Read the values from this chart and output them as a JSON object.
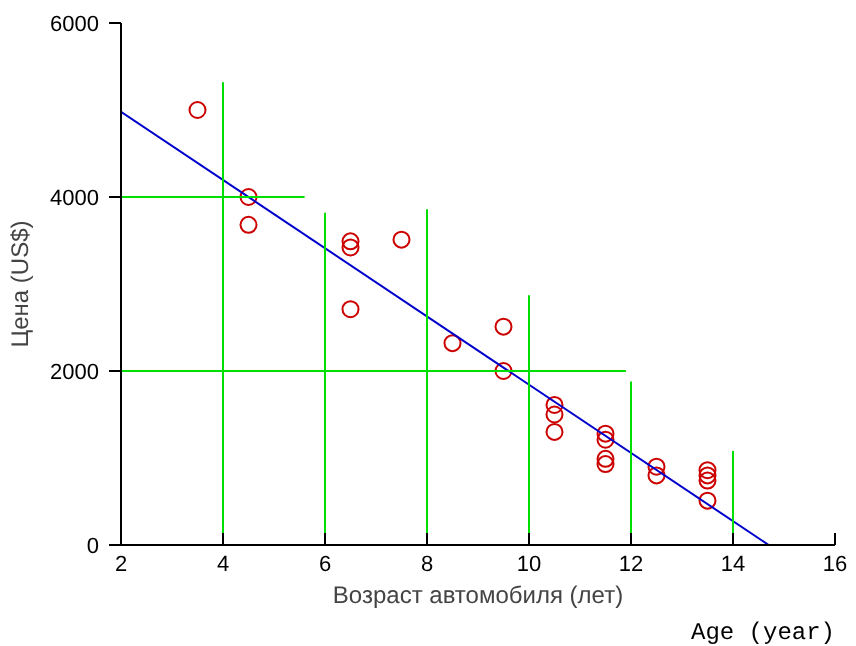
{
  "chart_data": {
    "type": "scatter",
    "xlabel": "Возраст автомобиля (лет)",
    "ylabel": "Цена (US$)",
    "annotations": [
      "Age (year)"
    ],
    "xlim": [
      2,
      16
    ],
    "xticks": [
      2,
      4,
      6,
      8,
      10,
      12,
      14,
      16
    ],
    "ylim": [
      0,
      6000
    ],
    "yticks": [
      0,
      2000,
      4000,
      6000
    ],
    "grid": false,
    "series": [
      {
        "marker": "circle",
        "color": "#cc0000",
        "x": [
          3.5,
          4.5,
          4.5,
          6.5,
          6.5,
          6.5,
          7.5,
          8.5,
          9.5,
          9.5,
          10.5,
          10.5,
          10.5,
          11.5,
          11.5,
          11.5,
          11.5,
          12.5,
          12.5,
          13.5,
          13.5,
          13.5,
          13.5
        ],
        "values": [
          5000,
          4000,
          3680,
          3490,
          3420,
          2710,
          3510,
          2320,
          2510,
          2000,
          1610,
          1500,
          1300,
          1280,
          1210,
          990,
          930,
          900,
          800,
          860,
          800,
          740,
          510
        ]
      },
      {
        "type": "line",
        "color": "#0000cc",
        "x": [
          2,
          14.7
        ],
        "values": [
          4980,
          0
        ]
      },
      {
        "type": "line",
        "color": "#00dd00",
        "x": [
          4,
          4
        ],
        "values": [
          0,
          5320
        ]
      },
      {
        "type": "line",
        "color": "#00dd00",
        "x": [
          6,
          6
        ],
        "values": [
          0,
          3820
        ]
      },
      {
        "type": "line",
        "color": "#00dd00",
        "x": [
          8,
          8
        ],
        "values": [
          0,
          3860
        ]
      },
      {
        "type": "line",
        "color": "#00dd00",
        "x": [
          10,
          10
        ],
        "values": [
          0,
          2870
        ]
      },
      {
        "type": "line",
        "color": "#00dd00",
        "x": [
          12,
          12
        ],
        "values": [
          0,
          1880
        ]
      },
      {
        "type": "line",
        "color": "#00dd00",
        "x": [
          14,
          14
        ],
        "values": [
          0,
          1080
        ]
      },
      {
        "type": "line",
        "color": "#00dd00",
        "x": [
          2,
          5.6
        ],
        "values": [
          4000,
          4000
        ]
      },
      {
        "type": "line",
        "color": "#00dd00",
        "x": [
          2,
          11.9
        ],
        "values": [
          2000,
          2000
        ]
      }
    ]
  }
}
